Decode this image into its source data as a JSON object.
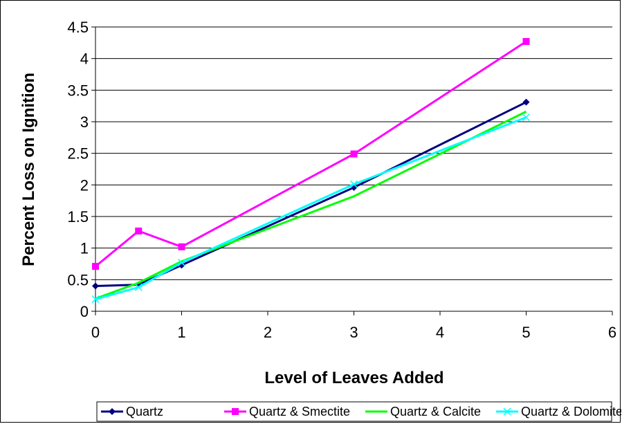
{
  "chart_data": {
    "type": "line",
    "title": "",
    "xlabel": "Level of Leaves Added",
    "ylabel": "Percent Loss on Ignition",
    "xlim": [
      0,
      6
    ],
    "ylim": [
      0,
      4.5
    ],
    "x_ticks": [
      "0",
      "1",
      "2",
      "3",
      "4",
      "5",
      "6"
    ],
    "y_ticks": [
      "0",
      "0.5",
      "1",
      "1.5",
      "2",
      "2.5",
      "3",
      "3.5",
      "4",
      "4.5"
    ],
    "x": [
      0,
      0.5,
      1,
      3,
      5
    ],
    "grid": "horizontal",
    "legend_position": "bottom",
    "series": [
      {
        "name": "Quartz",
        "color": "#000080",
        "marker": "diamond",
        "values": [
          0.4,
          0.42,
          0.73,
          1.96,
          3.31
        ]
      },
      {
        "name": "Quartz & Smectite",
        "color": "#ff00ff",
        "marker": "square",
        "values": [
          0.71,
          1.27,
          1.02,
          2.49,
          4.27
        ]
      },
      {
        "name": "Quartz & Calcite",
        "color": "#00ff00",
        "marker": "none",
        "values": [
          0.2,
          0.45,
          0.79,
          1.82,
          3.16
        ]
      },
      {
        "name": "Quartz & Dolomite",
        "color": "#00ffff",
        "marker": "x",
        "values": [
          0.19,
          0.38,
          0.77,
          2.01,
          3.07
        ]
      }
    ]
  }
}
